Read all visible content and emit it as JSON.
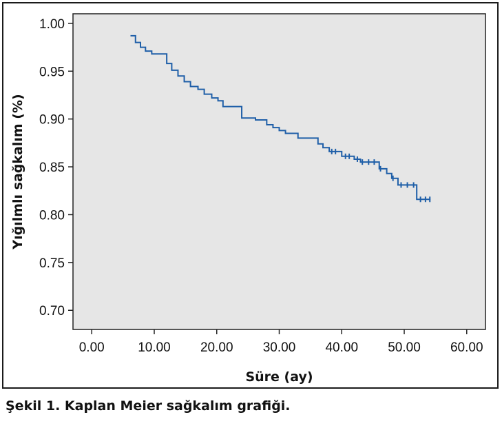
{
  "caption": "Şekil 1. Kaplan Meier sağkalım grafiği.",
  "chart_data": {
    "type": "line",
    "subtype": "kaplan-meier-step",
    "title": "",
    "xlabel": "Süre (ay)",
    "ylabel": "Yığılmlı sağkalım (%)",
    "xlim": [
      -3,
      63
    ],
    "ylim": [
      0.68,
      1.01
    ],
    "x_ticks": [
      0,
      10,
      20,
      30,
      40,
      50,
      60
    ],
    "x_tick_labels": [
      "0.00",
      "10.00",
      "20.00",
      "30.00",
      "40.00",
      "50.00",
      "60.00"
    ],
    "y_ticks": [
      0.7,
      0.75,
      0.8,
      0.85,
      0.9,
      0.95,
      1.0
    ],
    "y_tick_labels": [
      "0.70",
      "0.75",
      "0.80",
      "0.85",
      "0.90",
      "0.95",
      "1.00"
    ],
    "grid": false,
    "background_color": "#e6e6e6",
    "line_color": "#1f5fa8",
    "series": [
      {
        "steps": [
          [
            6.2,
            0.987
          ],
          [
            7.0,
            0.98
          ],
          [
            7.8,
            0.975
          ],
          [
            8.6,
            0.971
          ],
          [
            9.6,
            0.968
          ],
          [
            12.0,
            0.958
          ],
          [
            12.8,
            0.951
          ],
          [
            13.8,
            0.945
          ],
          [
            14.8,
            0.939
          ],
          [
            15.8,
            0.934
          ],
          [
            17.0,
            0.931
          ],
          [
            18.0,
            0.926
          ],
          [
            19.2,
            0.922
          ],
          [
            20.2,
            0.919
          ],
          [
            21.0,
            0.913
          ],
          [
            24.0,
            0.901
          ],
          [
            26.2,
            0.899
          ],
          [
            28.0,
            0.894
          ],
          [
            29.0,
            0.891
          ],
          [
            30.0,
            0.888
          ],
          [
            31.0,
            0.885
          ],
          [
            33.0,
            0.88
          ],
          [
            36.2,
            0.874
          ],
          [
            37.0,
            0.87
          ],
          [
            38.0,
            0.866
          ],
          [
            40.0,
            0.861
          ],
          [
            42.0,
            0.858
          ],
          [
            43.0,
            0.855
          ],
          [
            46.0,
            0.848
          ],
          [
            47.2,
            0.843
          ],
          [
            48.0,
            0.838
          ],
          [
            49.0,
            0.831
          ],
          [
            52.0,
            0.816
          ]
        ],
        "end_x": 54.2,
        "censored": [
          [
            38.4,
            0.866
          ],
          [
            39.0,
            0.866
          ],
          [
            40.6,
            0.861
          ],
          [
            41.2,
            0.861
          ],
          [
            42.5,
            0.858
          ],
          [
            43.3,
            0.855
          ],
          [
            44.3,
            0.855
          ],
          [
            45.2,
            0.855
          ],
          [
            46.2,
            0.848
          ],
          [
            48.2,
            0.838
          ],
          [
            49.5,
            0.831
          ],
          [
            50.5,
            0.831
          ],
          [
            51.5,
            0.831
          ],
          [
            52.6,
            0.816
          ],
          [
            53.4,
            0.816
          ],
          [
            54.1,
            0.816
          ]
        ]
      }
    ]
  }
}
